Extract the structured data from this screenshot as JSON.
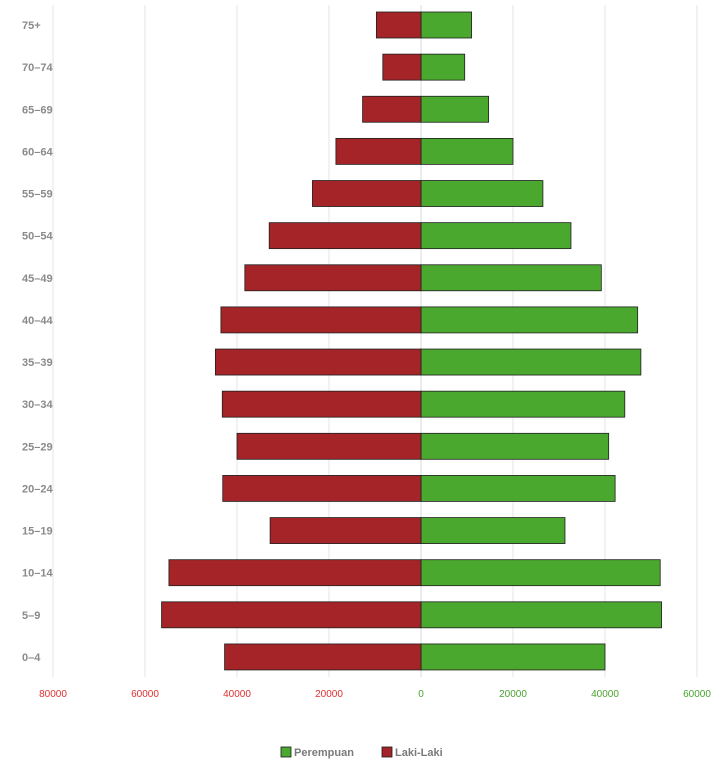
{
  "chart_data": {
    "type": "bar",
    "orientation": "horizontal-population-pyramid",
    "categories": [
      "75+",
      "70–74",
      "65–69",
      "60–64",
      "55–59",
      "50–54",
      "45–49",
      "40–44",
      "35–39",
      "30–34",
      "25–29",
      "20–24",
      "15–19",
      "10–14",
      "5–9",
      "0–4"
    ],
    "series": [
      {
        "name": "Perempuan",
        "side": "right",
        "color": "#4aa82f",
        "values": [
          11000,
          9500,
          14700,
          20000,
          26500,
          32600,
          39200,
          47100,
          47800,
          44300,
          40800,
          42200,
          31300,
          52000,
          52300,
          40000
        ]
      },
      {
        "name": "Laki-Laki",
        "side": "left",
        "color": "#a52428",
        "values": [
          9700,
          8300,
          12700,
          18500,
          23600,
          33000,
          38300,
          43500,
          44700,
          43200,
          40000,
          43100,
          32800,
          54800,
          56400,
          42700
        ]
      }
    ],
    "x_ticks_left": [
      "80000",
      "60000",
      "40000",
      "20000"
    ],
    "x_ticks_right": [
      "0",
      "20000",
      "40000",
      "60000"
    ],
    "x_tick_colors": {
      "left": "#e03030",
      "right": "#4aa330"
    },
    "xlim": [
      -80000,
      60000
    ],
    "grid": true,
    "legend": {
      "position": "bottom-center",
      "items": [
        "Perempuan",
        "Laki-Laki"
      ]
    }
  }
}
